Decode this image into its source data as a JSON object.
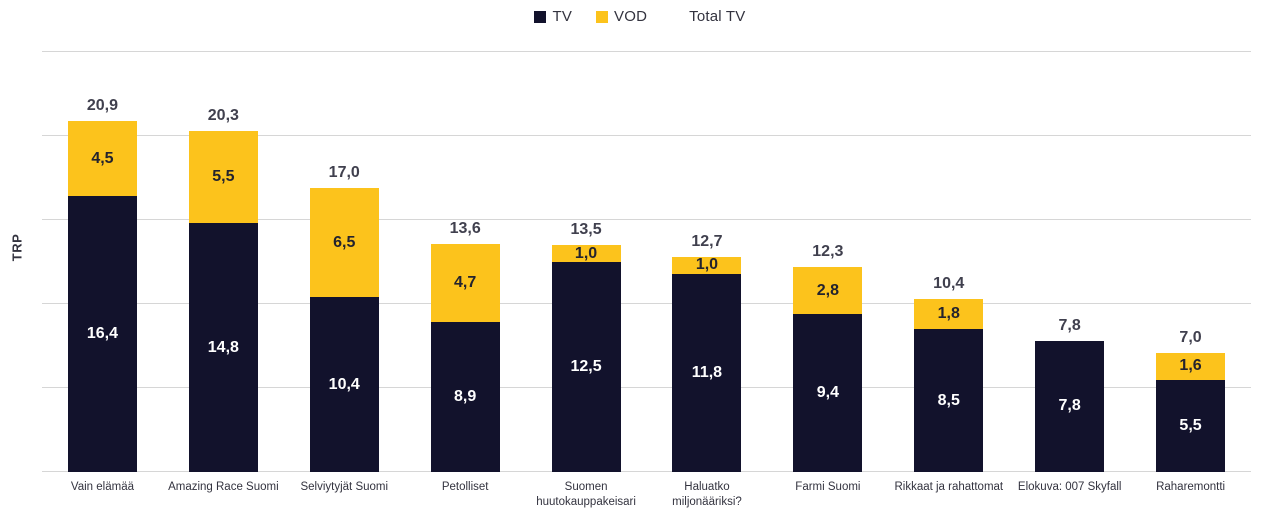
{
  "chart_data": {
    "type": "bar",
    "stacked": true,
    "title": "",
    "ylabel": "TRP",
    "xlabel": "",
    "ylim": [
      0,
      25
    ],
    "grid_interval": 5,
    "grid": true,
    "legend_position": "top",
    "decimal_separator": ",",
    "categories": [
      "Vain elämää",
      "Amazing Race Suomi",
      "Selviytyjät Suomi",
      "Petolliset",
      "Suomen huutokauppakeisari",
      "Haluatko miljonääriksi?",
      "Farmi Suomi",
      "Rikkaat ja rahattomat",
      "Elokuva: 007 Skyfall",
      "Raharemontti"
    ],
    "series": [
      {
        "name": "TV",
        "color": "#12122c",
        "label_color": "#ffffff",
        "values": [
          16.4,
          14.8,
          10.4,
          8.9,
          12.5,
          11.8,
          9.4,
          8.5,
          7.8,
          5.5
        ],
        "labels": [
          "16,4",
          "14,8",
          "10,4",
          "8,9",
          "12,5",
          "11,8",
          "9,4",
          "8,5",
          "7,8",
          "5,5"
        ]
      },
      {
        "name": "VOD",
        "color": "#fcc31c",
        "label_color": "#23232e",
        "values": [
          4.5,
          5.5,
          6.5,
          4.7,
          1.0,
          1.0,
          2.8,
          1.8,
          0,
          1.6
        ],
        "labels": [
          "4,5",
          "5,5",
          "6,5",
          "4,7",
          "1,0",
          "1,0",
          "2,8",
          "1,8",
          "",
          "1,6"
        ]
      }
    ],
    "totals": {
      "name": "Total TV",
      "values": [
        20.9,
        20.3,
        17.0,
        13.6,
        13.5,
        12.7,
        12.3,
        10.4,
        7.8,
        7.0
      ],
      "labels": [
        "20,9",
        "20,3",
        "17,0",
        "13,6",
        "13,5",
        "12,7",
        "12,3",
        "10,4",
        "7,8",
        "7,0"
      ],
      "label_color": "#40404e"
    },
    "legend_items": [
      {
        "label": "TV",
        "swatch_color": "#12122c"
      },
      {
        "label": "VOD",
        "swatch_color": "#fcc31c"
      },
      {
        "label": "Total TV",
        "swatch_color": "transparent"
      }
    ],
    "colors": {
      "gridline": "#d6d6d6",
      "background": "#ffffff"
    }
  }
}
